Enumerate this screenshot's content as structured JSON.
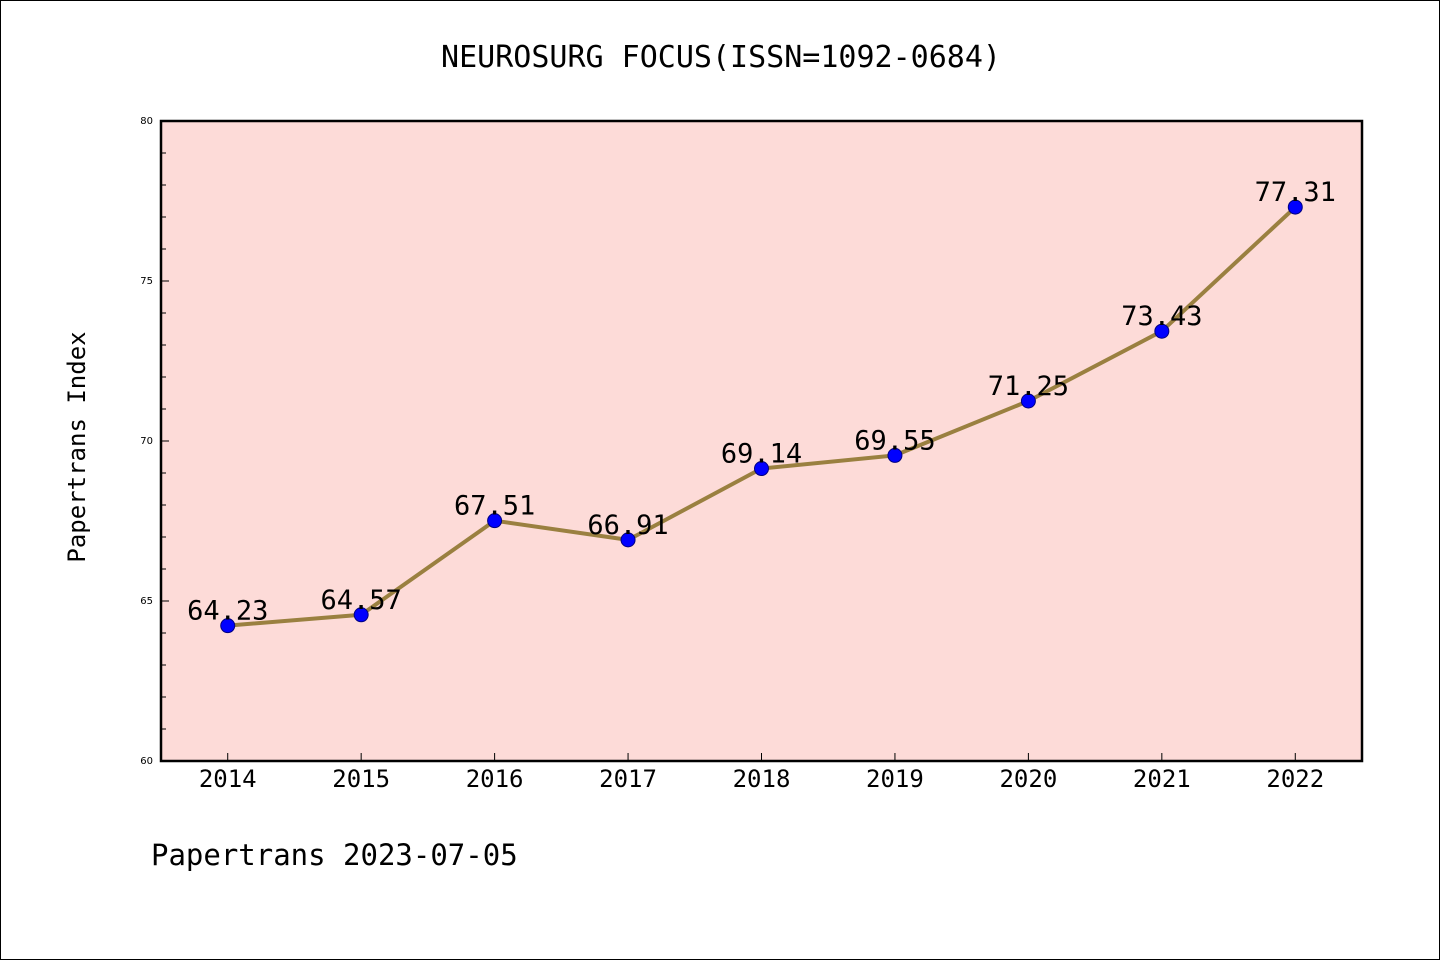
{
  "chart_data": {
    "type": "line",
    "title": "NEUROSURG FOCUS(ISSN=1092-0684)",
    "xlabel": "",
    "ylabel": "Papertrans Index",
    "categories": [
      "2014",
      "2015",
      "2016",
      "2017",
      "2018",
      "2019",
      "2020",
      "2021",
      "2022"
    ],
    "series": [
      {
        "values": [
          64.23,
          64.57,
          67.51,
          66.91,
          69.14,
          69.55,
          71.25,
          73.43,
          77.31
        ],
        "labels": [
          "64.23",
          "64.57",
          "67.51",
          "66.91",
          "69.14",
          "69.55",
          "71.25",
          "73.43",
          "77.31"
        ]
      }
    ],
    "ylim": [
      60,
      80
    ],
    "yticks": [
      60,
      65,
      70,
      75,
      80
    ],
    "ytick_labels": [
      "60",
      "65",
      "70",
      "75",
      "80"
    ],
    "minor_ytick_step": 1,
    "grid": false,
    "legend": "none",
    "colors": {
      "plot_background": "#fddbd8",
      "line": "#9a8040",
      "marker": "#0000ff",
      "marker_edge": "#000080"
    }
  },
  "footer": "Papertrans 2023-07-05"
}
